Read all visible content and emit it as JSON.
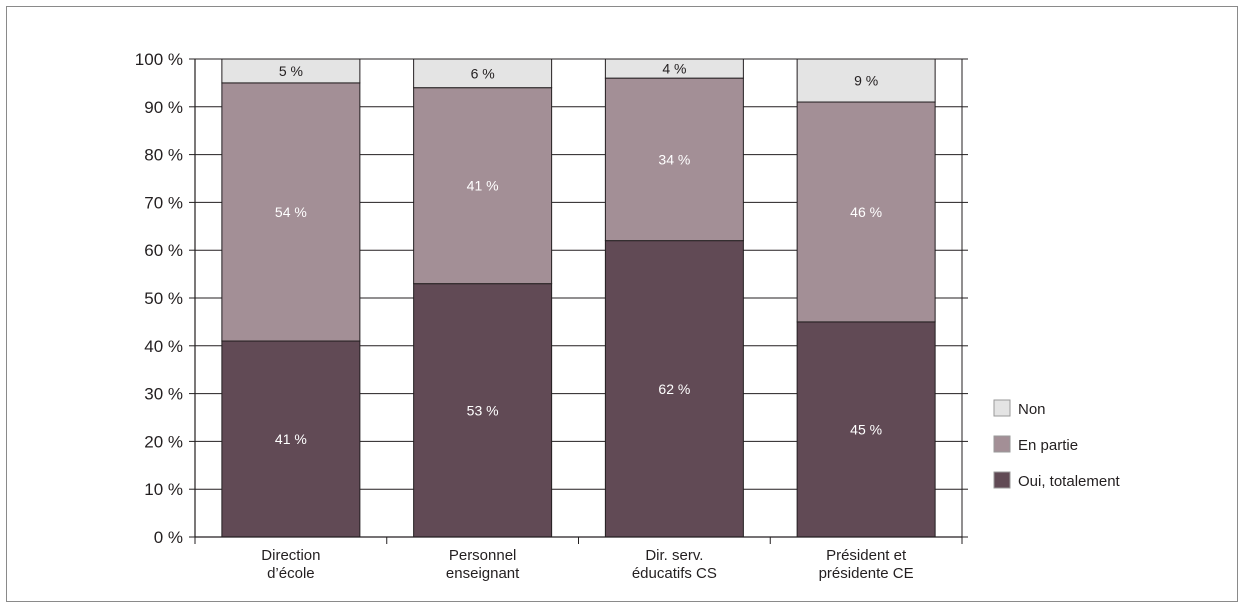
{
  "chart_data": {
    "type": "bar",
    "stacked": true,
    "categories": [
      [
        "Direction",
        "d’école"
      ],
      [
        "Personnel",
        "enseignant"
      ],
      [
        "Dir. serv.",
        "éducatifs CS"
      ],
      [
        "Président et",
        "présidente CE"
      ]
    ],
    "series": [
      {
        "name": "Oui, totalement",
        "values": [
          41,
          53,
          62,
          45
        ],
        "labels": [
          "41 %",
          "53 %",
          "62 %",
          "45 %"
        ]
      },
      {
        "name": "En partie",
        "values": [
          54,
          41,
          34,
          46
        ],
        "labels": [
          "54 %",
          "41 %",
          "34 %",
          "46 %"
        ]
      },
      {
        "name": "Non",
        "values": [
          5,
          6,
          4,
          9
        ],
        "labels": [
          "5 %",
          "6 %",
          "4 %",
          "9 %"
        ]
      }
    ],
    "ylim": [
      0,
      100
    ],
    "yticks": [
      "0 %",
      "10 %",
      "20 %",
      "30 %",
      "40 %",
      "50 %",
      "60 %",
      "70 %",
      "80 %",
      "90 %",
      "100 %"
    ],
    "grid": true,
    "legend_position": "right",
    "legend_order": [
      "Non",
      "En partie",
      "Oui, totalement"
    ],
    "colors": {
      "Oui, totalement": "#614a55",
      "En partie": "#a38f96",
      "Non": "#e4e4e4",
      "axis": "#231f20",
      "label_on_dark": "#ffffff",
      "label_on_light": "#231f20"
    }
  }
}
